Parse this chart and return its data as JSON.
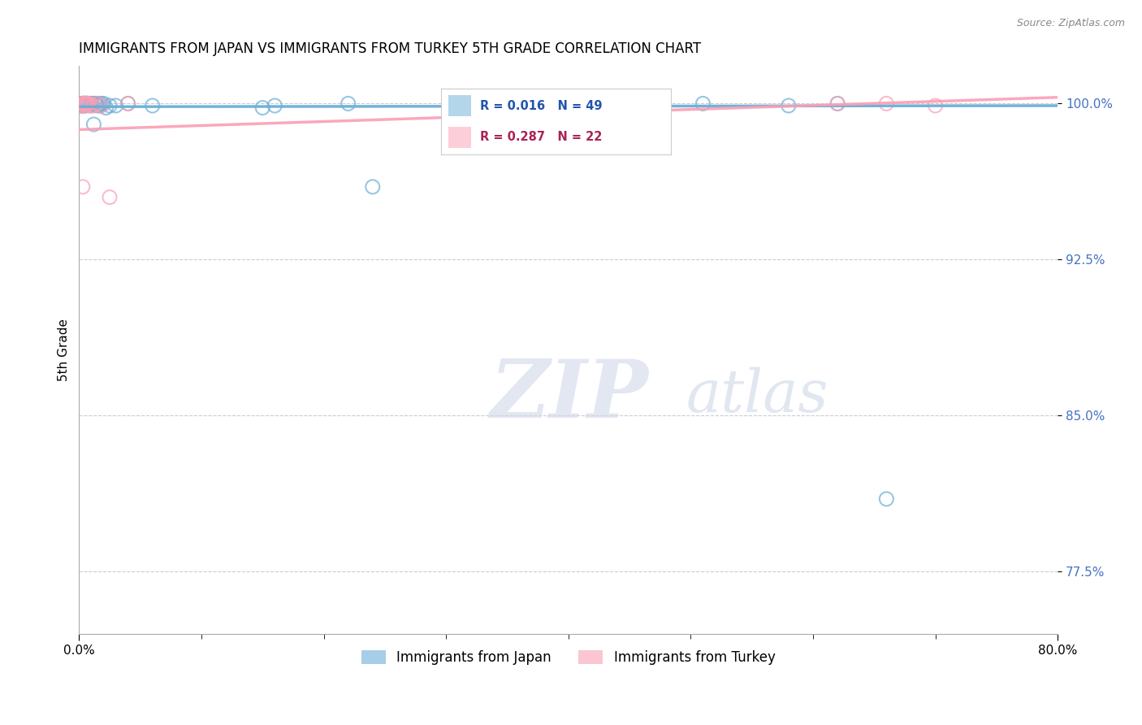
{
  "title": "IMMIGRANTS FROM JAPAN VS IMMIGRANTS FROM TURKEY 5TH GRADE CORRELATION CHART",
  "source": "Source: ZipAtlas.com",
  "ylabel": "5th Grade",
  "legend_japan": "Immigrants from Japan",
  "legend_turkey": "Immigrants from Turkey",
  "R_japan": 0.016,
  "N_japan": 49,
  "R_turkey": 0.287,
  "N_turkey": 22,
  "color_japan": "#6baed6",
  "color_turkey": "#fa9fb5",
  "xlim": [
    0.0,
    0.8
  ],
  "ylim": [
    0.745,
    1.018
  ],
  "ytick_vals": [
    1.0,
    0.925,
    0.85,
    0.775
  ],
  "ytick_labels": [
    "100.0%",
    "92.5%",
    "85.0%",
    "77.5%"
  ],
  "xtick_vals": [
    0.0,
    0.8
  ],
  "xtick_labels": [
    "0.0%",
    "80.0%"
  ],
  "japan_scatter_x": [
    0.001,
    0.002,
    0.002,
    0.003,
    0.003,
    0.003,
    0.004,
    0.004,
    0.005,
    0.005,
    0.005,
    0.006,
    0.006,
    0.007,
    0.007,
    0.008,
    0.009,
    0.01,
    0.011,
    0.012,
    0.013,
    0.014,
    0.015,
    0.016,
    0.017,
    0.018,
    0.02,
    0.022,
    0.025,
    0.03,
    0.04,
    0.06,
    0.15,
    0.16,
    0.22,
    0.33,
    0.37,
    0.43,
    0.44,
    0.46,
    0.51,
    0.58,
    0.62,
    0.66,
    0.003,
    0.004,
    0.005,
    0.007,
    0.24
  ],
  "japan_scatter_y": [
    0.999,
    0.999,
    1.0,
    1.0,
    1.0,
    1.0,
    1.0,
    0.999,
    1.0,
    0.999,
    1.0,
    1.0,
    1.0,
    1.0,
    1.0,
    1.0,
    0.999,
    1.0,
    1.0,
    0.99,
    1.0,
    1.0,
    0.999,
    1.0,
    0.999,
    1.0,
    1.0,
    0.998,
    0.999,
    0.999,
    1.0,
    0.999,
    0.998,
    0.999,
    1.0,
    0.999,
    1.0,
    0.999,
    1.0,
    0.999,
    1.0,
    0.999,
    1.0,
    0.81,
    1.0,
    1.0,
    1.0,
    1.0,
    0.96
  ],
  "turkey_scatter_x": [
    0.001,
    0.002,
    0.003,
    0.004,
    0.005,
    0.006,
    0.007,
    0.008,
    0.01,
    0.012,
    0.015,
    0.018,
    0.025,
    0.04,
    0.003,
    0.004,
    0.005,
    0.006,
    0.007,
    0.62,
    0.66,
    0.7
  ],
  "turkey_scatter_y": [
    0.999,
    0.999,
    1.0,
    1.0,
    0.999,
    1.0,
    1.0,
    1.0,
    0.999,
    0.999,
    1.0,
    0.999,
    0.955,
    1.0,
    0.96,
    1.0,
    1.0,
    1.0,
    1.0,
    1.0,
    1.0,
    0.999
  ],
  "watermark_zip": "ZIP",
  "watermark_atlas": "atlas"
}
